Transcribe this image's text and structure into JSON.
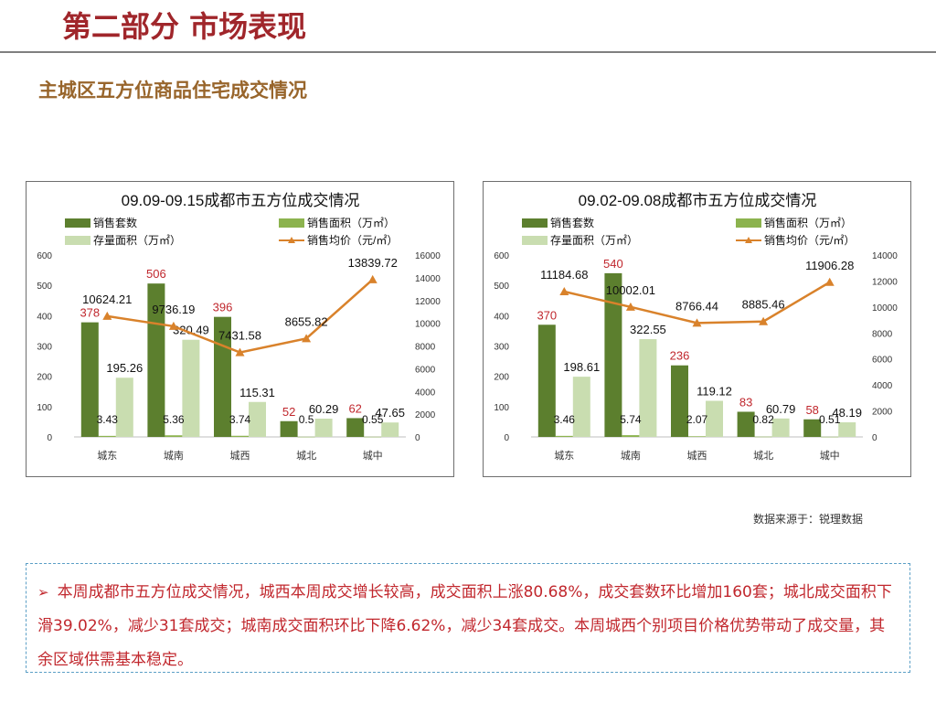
{
  "header": {
    "title": "第二部分 市场表现",
    "subtitle": "主城区五方位商品住宅成交情况"
  },
  "colors": {
    "title": "#a0262b",
    "subtitle": "#98652b",
    "units_dark": "#5c7f2e",
    "area_green": "#8cb34e",
    "stock_light": "#c9ddb0",
    "price_line": "#d9822b",
    "label_red": "#c0272d",
    "summary_text": "#c1272d",
    "summary_border": "#5c9fc6"
  },
  "source": "数据来源于：锐理数据",
  "summary": {
    "bullet": "➢",
    "text": "本周成都市五方位成交情况，城西本周成交增长较高，成交面积上涨80.68%，成交套数环比增加160套；城北成交面积下滑39.02%，减少31套成交；城南成交面积环比下降6.62%，减少34套成交。本周城西个别项目价格优势带动了成交量，其余区域供需基本稳定。"
  },
  "chart_data": [
    {
      "type": "bar",
      "title": "09.09-09.15成都市五方位成交情况",
      "categories": [
        "城东",
        "城南",
        "城西",
        "城北",
        "城中"
      ],
      "legend": [
        "销售套数",
        "销售面积（万㎡）",
        "存量面积（万㎡）",
        "销售均价（元/㎡）"
      ],
      "series": [
        {
          "name": "销售套数",
          "axis": "left",
          "kind": "bar",
          "values": [
            378,
            506,
            396,
            52,
            62
          ]
        },
        {
          "name": "销售面积（万㎡）",
          "axis": "left",
          "kind": "bar",
          "values": [
            3.43,
            5.36,
            3.74,
            0.5,
            0.55
          ]
        },
        {
          "name": "存量面积（万㎡）",
          "axis": "left",
          "kind": "bar",
          "values": [
            195.26,
            320.49,
            115.31,
            60.29,
            47.65
          ]
        },
        {
          "name": "销售均价（元/㎡）",
          "axis": "right",
          "kind": "line",
          "values": [
            10624.21,
            9736.19,
            7431.58,
            8655.82,
            13839.72
          ]
        }
      ],
      "units_labels": [
        "378",
        "506",
        "396",
        "52",
        "62"
      ],
      "area_labels": [
        "3.43",
        "5.36",
        "3.74",
        "0.5",
        "0.55"
      ],
      "stock_labels": [
        "195.26",
        "320.49",
        "115.31",
        "60.29",
        "47.65"
      ],
      "price_labels": [
        "10624.21",
        "9736.19",
        "7431.58",
        "8655.82",
        "13839.72"
      ],
      "ylim": [
        0,
        600
      ],
      "yticks": [
        "0",
        "100",
        "200",
        "300",
        "400",
        "500",
        "600"
      ],
      "y2lim": [
        0,
        16000
      ],
      "y2ticks": [
        "0",
        "2000",
        "4000",
        "6000",
        "8000",
        "10000",
        "12000",
        "14000",
        "16000"
      ]
    },
    {
      "type": "bar",
      "title": "09.02-09.08成都市五方位成交情况",
      "categories": [
        "城东",
        "城南",
        "城西",
        "城北",
        "城中"
      ],
      "legend": [
        "销售套数",
        "销售面积（万㎡）",
        "存量面积（万㎡）",
        "销售均价（元/㎡）"
      ],
      "series": [
        {
          "name": "销售套数",
          "axis": "left",
          "kind": "bar",
          "values": [
            370,
            540,
            236,
            83,
            58
          ]
        },
        {
          "name": "销售面积（万㎡）",
          "axis": "left",
          "kind": "bar",
          "values": [
            3.46,
            5.74,
            2.07,
            0.82,
            0.51
          ]
        },
        {
          "name": "存量面积（万㎡）",
          "axis": "left",
          "kind": "bar",
          "values": [
            198.61,
            322.55,
            119.12,
            60.79,
            48.19
          ]
        },
        {
          "name": "销售均价（元/㎡）",
          "axis": "right",
          "kind": "line",
          "values": [
            11184.68,
            10002.01,
            8766.44,
            8885.46,
            11906.28
          ]
        }
      ],
      "units_labels": [
        "370",
        "540",
        "236",
        "83",
        "58"
      ],
      "area_labels": [
        "3.46",
        "5.74",
        "2.07",
        "0.82",
        "0.51"
      ],
      "stock_labels": [
        "198.61",
        "322.55",
        "119.12",
        "60.79",
        "48.19"
      ],
      "price_labels": [
        "11184.68",
        "10002.01",
        "8766.44",
        "8885.46",
        "11906.28"
      ],
      "ylim": [
        0,
        600
      ],
      "yticks": [
        "0",
        "100",
        "200",
        "300",
        "400",
        "500",
        "600"
      ],
      "y2lim": [
        0,
        14000
      ],
      "y2ticks": [
        "0",
        "2000",
        "4000",
        "6000",
        "8000",
        "10000",
        "12000",
        "14000"
      ]
    }
  ]
}
